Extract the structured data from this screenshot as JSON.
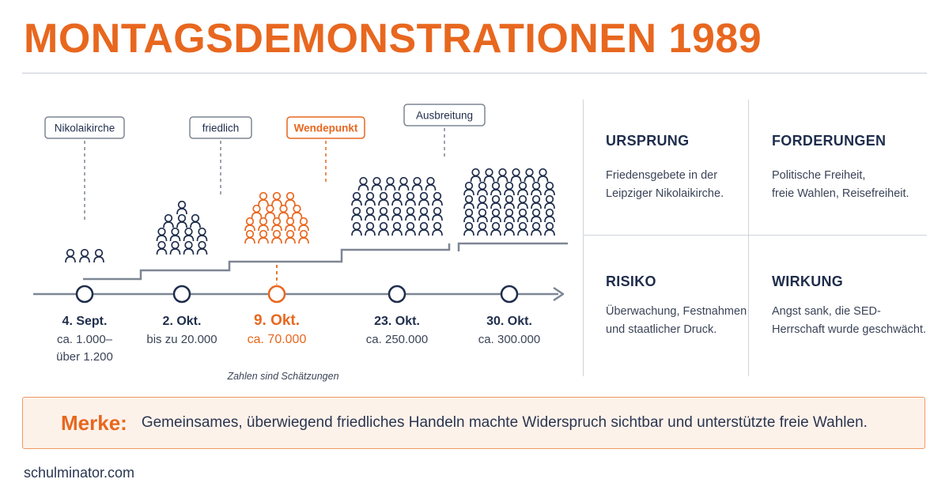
{
  "title": "MONTAGSDEMONSTRATIONEN 1989",
  "timeline": {
    "events": [
      {
        "date": "4. Sept.",
        "count_line1": "ca. 1.000–",
        "count_line2": "über 1.200",
        "callout": "Nikolaikirche",
        "highlight": false,
        "crowd_size": 5
      },
      {
        "date": "2. Okt.",
        "count_line1": "bis zu 20.000",
        "count_line2": "",
        "callout": "friedlich",
        "highlight": false,
        "crowd_size": 12
      },
      {
        "date": "9. Okt.",
        "count_line1": "ca. 70.000",
        "count_line2": "",
        "callout": "Wendepunkt",
        "highlight": true,
        "crowd_size": 17
      },
      {
        "date": "23. Okt.",
        "count_line1": "ca. 250.000",
        "count_line2": "",
        "callout": "Ausbreitung",
        "highlight": false,
        "crowd_size": 27
      },
      {
        "date": "30. Okt.",
        "count_line1": "ca. 300.000",
        "count_line2": "",
        "callout": "",
        "highlight": false,
        "crowd_size": 34
      }
    ],
    "note": "Zahlen sind Schätzungen"
  },
  "panels": {
    "ursprung": {
      "title": "URSPRUNG",
      "line1": "Friedensgebete in der",
      "line2": "Leipziger Nikolaikirche."
    },
    "forderungen": {
      "title": "FORDERUNGEN",
      "line1": "Politische Freiheit,",
      "line2": "freie Wahlen, Reisefreiheit."
    },
    "risiko": {
      "title": "RISIKO",
      "line1": "Überwachung, Festnahmen",
      "line2": "und staatlicher Druck."
    },
    "wirkung": {
      "title": "WIRKUNG",
      "line1": "Angst sank, die SED-",
      "line2": "Herrschaft wurde geschwächt."
    }
  },
  "merke": {
    "label": "Merke:",
    "text": "Gemeinsames, überwiegend friedliches Handeln machte Widerspruch sichtbar und unterstützte freie Wahlen."
  },
  "footer": "schulminator.com",
  "colors": {
    "accent": "#e8671f",
    "navy": "#1f2d4c",
    "gray": "#7d8694"
  }
}
